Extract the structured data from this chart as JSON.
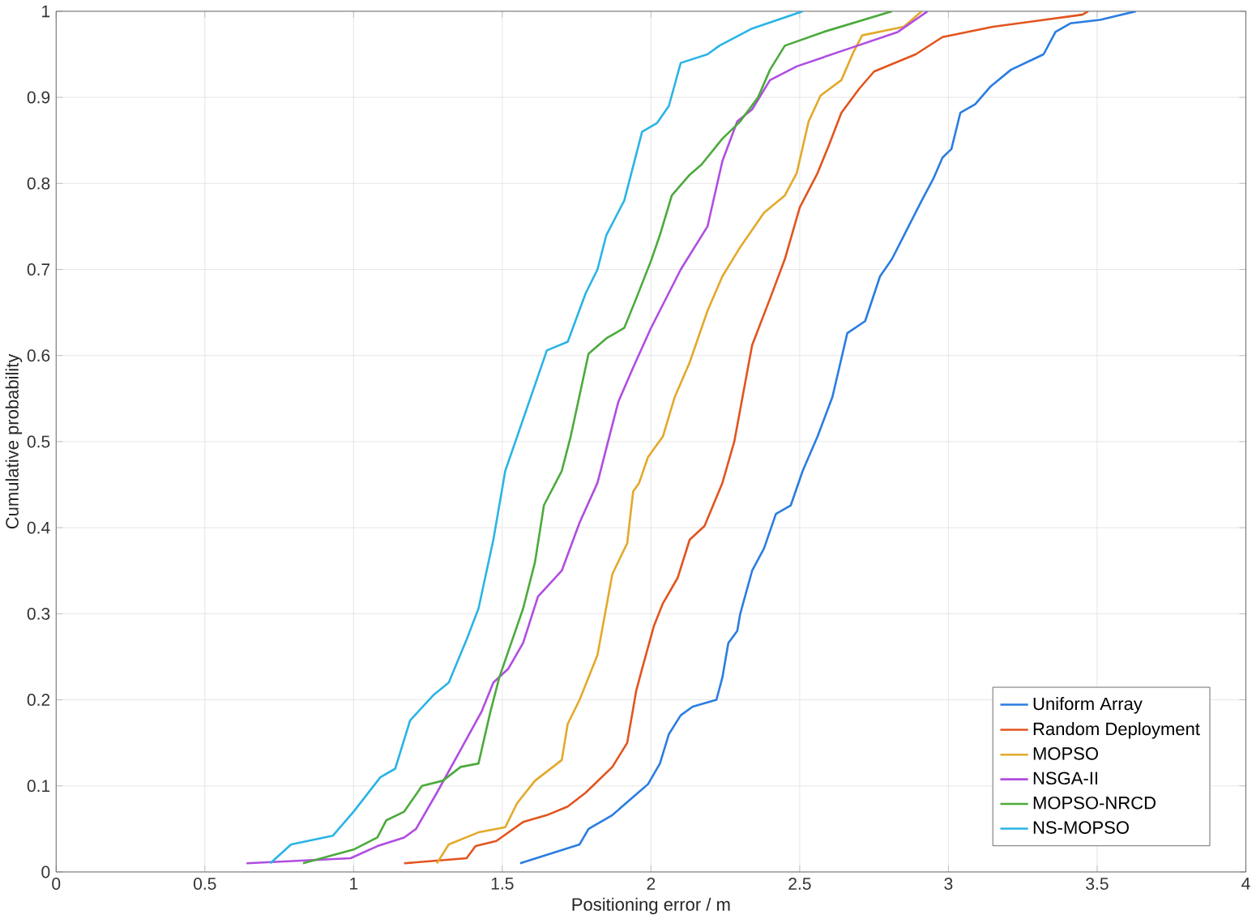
{
  "chart_data": {
    "type": "line",
    "xlabel": "Positioning error / m",
    "ylabel": "Cumulative probability",
    "xlim": [
      0,
      4
    ],
    "ylim": [
      0,
      1
    ],
    "xticks": [
      0,
      0.5,
      1,
      1.5,
      2,
      2.5,
      3,
      3.5,
      4
    ],
    "yticks": [
      0,
      0.1,
      0.2,
      0.3,
      0.4,
      0.5,
      0.6,
      0.7,
      0.8,
      0.9,
      1
    ],
    "grid": true,
    "legend": "bottom right",
    "line_style": "solid",
    "series": [
      {
        "name": "Uniform Array",
        "color": "#2a7de1",
        "x": [
          1.56,
          1.76,
          1.79,
          1.87,
          1.95,
          1.99,
          2.03,
          2.06,
          2.1,
          2.14,
          2.22,
          2.24,
          2.26,
          2.29,
          2.3,
          2.34,
          2.38,
          2.42,
          2.47,
          2.51,
          2.56,
          2.61,
          2.66,
          2.72,
          2.77,
          2.81,
          2.86,
          2.91,
          2.95,
          2.98,
          3.01,
          3.04,
          3.09,
          3.14,
          3.21,
          3.32,
          3.36,
          3.41,
          3.51,
          3.63
        ],
        "values": [
          0.01,
          0.032,
          0.05,
          0.066,
          0.09,
          0.102,
          0.126,
          0.16,
          0.182,
          0.192,
          0.2,
          0.226,
          0.266,
          0.28,
          0.3,
          0.35,
          0.376,
          0.416,
          0.426,
          0.466,
          0.506,
          0.552,
          0.626,
          0.64,
          0.692,
          0.712,
          0.746,
          0.78,
          0.806,
          0.83,
          0.84,
          0.882,
          0.892,
          0.912,
          0.932,
          0.95,
          0.976,
          0.986,
          0.99,
          1.0
        ]
      },
      {
        "name": "Random Deployment",
        "color": "#e2541e",
        "x": [
          1.17,
          1.38,
          1.41,
          1.48,
          1.57,
          1.65,
          1.72,
          1.78,
          1.87,
          1.92,
          1.95,
          1.97,
          2.01,
          2.04,
          2.09,
          2.13,
          2.18,
          2.24,
          2.28,
          2.34,
          2.4,
          2.45,
          2.5,
          2.56,
          2.6,
          2.64,
          2.7,
          2.75,
          2.89,
          2.98,
          3.15,
          3.45,
          3.47
        ],
        "values": [
          0.01,
          0.016,
          0.03,
          0.036,
          0.058,
          0.066,
          0.076,
          0.092,
          0.122,
          0.15,
          0.21,
          0.236,
          0.286,
          0.312,
          0.342,
          0.386,
          0.402,
          0.452,
          0.5,
          0.612,
          0.666,
          0.712,
          0.772,
          0.812,
          0.846,
          0.882,
          0.91,
          0.93,
          0.95,
          0.97,
          0.982,
          0.996,
          1.0
        ]
      },
      {
        "name": "MOPSO",
        "color": "#e3a92a",
        "x": [
          1.28,
          1.32,
          1.42,
          1.51,
          1.55,
          1.61,
          1.7,
          1.72,
          1.76,
          1.82,
          1.87,
          1.92,
          1.94,
          1.96,
          1.99,
          2.04,
          2.08,
          2.13,
          2.19,
          2.24,
          2.3,
          2.38,
          2.45,
          2.49,
          2.53,
          2.57,
          2.64,
          2.68,
          2.71,
          2.85,
          2.91
        ],
        "values": [
          0.01,
          0.032,
          0.046,
          0.052,
          0.08,
          0.106,
          0.13,
          0.172,
          0.2,
          0.252,
          0.346,
          0.382,
          0.442,
          0.452,
          0.482,
          0.506,
          0.552,
          0.592,
          0.652,
          0.692,
          0.726,
          0.766,
          0.786,
          0.812,
          0.872,
          0.902,
          0.92,
          0.952,
          0.972,
          0.982,
          1.0
        ]
      },
      {
        "name": "NSGA-II",
        "color": "#b04de0",
        "x": [
          0.64,
          0.99,
          1.08,
          1.17,
          1.21,
          1.28,
          1.36,
          1.43,
          1.47,
          1.52,
          1.57,
          1.62,
          1.7,
          1.76,
          1.82,
          1.86,
          1.89,
          1.94,
          2.0,
          2.1,
          2.19,
          2.24,
          2.29,
          2.34,
          2.4,
          2.49,
          2.66,
          2.83,
          2.93
        ],
        "values": [
          0.01,
          0.016,
          0.03,
          0.04,
          0.05,
          0.092,
          0.142,
          0.186,
          0.22,
          0.236,
          0.266,
          0.32,
          0.35,
          0.406,
          0.452,
          0.506,
          0.546,
          0.586,
          0.632,
          0.7,
          0.75,
          0.826,
          0.872,
          0.886,
          0.92,
          0.936,
          0.956,
          0.976,
          1.0
        ]
      },
      {
        "name": "MOPSO-NRCD",
        "color": "#4caa3c",
        "x": [
          0.83,
          1.0,
          1.08,
          1.11,
          1.17,
          1.23,
          1.3,
          1.36,
          1.42,
          1.46,
          1.49,
          1.57,
          1.61,
          1.64,
          1.7,
          1.73,
          1.79,
          1.85,
          1.91,
          1.95,
          2.0,
          2.03,
          2.07,
          2.13,
          2.17,
          2.24,
          2.3,
          2.36,
          2.4,
          2.45,
          2.58,
          2.81
        ],
        "values": [
          0.01,
          0.026,
          0.04,
          0.06,
          0.07,
          0.1,
          0.106,
          0.122,
          0.126,
          0.186,
          0.226,
          0.306,
          0.36,
          0.426,
          0.466,
          0.506,
          0.602,
          0.62,
          0.632,
          0.666,
          0.71,
          0.74,
          0.786,
          0.81,
          0.822,
          0.852,
          0.872,
          0.9,
          0.932,
          0.96,
          0.976,
          1.0
        ]
      },
      {
        "name": "NS-MOPSO",
        "color": "#2ab4e6",
        "x": [
          0.72,
          0.79,
          0.93,
          1.0,
          1.09,
          1.14,
          1.19,
          1.27,
          1.32,
          1.38,
          1.42,
          1.47,
          1.51,
          1.55,
          1.65,
          1.72,
          1.78,
          1.82,
          1.85,
          1.91,
          1.97,
          2.02,
          2.06,
          2.1,
          2.19,
          2.23,
          2.34,
          2.51
        ],
        "values": [
          0.01,
          0.032,
          0.042,
          0.07,
          0.11,
          0.12,
          0.176,
          0.206,
          0.22,
          0.27,
          0.306,
          0.386,
          0.466,
          0.506,
          0.606,
          0.616,
          0.672,
          0.7,
          0.74,
          0.78,
          0.86,
          0.87,
          0.89,
          0.94,
          0.95,
          0.96,
          0.98,
          1.0
        ]
      }
    ]
  }
}
